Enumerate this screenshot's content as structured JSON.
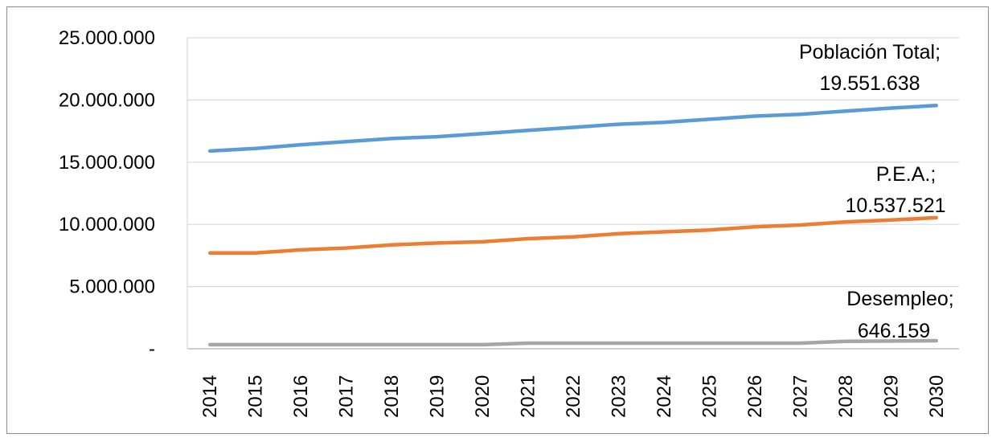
{
  "chart_data": {
    "type": "line",
    "title": "",
    "xlabel": "",
    "ylabel": "",
    "ylim": [
      0,
      25000000
    ],
    "grid": true,
    "legend": "none",
    "y_ticks": [
      {
        "value": 0,
        "label": "-"
      },
      {
        "value": 5000000,
        "label": "5.000.000"
      },
      {
        "value": 10000000,
        "label": "10.000.000"
      },
      {
        "value": 15000000,
        "label": "15.000.000"
      },
      {
        "value": 20000000,
        "label": "20.000.000"
      },
      {
        "value": 25000000,
        "label": "25.000.000"
      }
    ],
    "categories": [
      "2014",
      "2015",
      "2016",
      "2017",
      "2018",
      "2019",
      "2020",
      "2021",
      "2022",
      "2023",
      "2024",
      "2025",
      "2026",
      "2027",
      "2028",
      "2029",
      "2030"
    ],
    "series": [
      {
        "color": "#5b9bd5",
        "values": [
          15900000,
          16100000,
          16400000,
          16650000,
          16900000,
          17050000,
          17300000,
          17550000,
          17800000,
          18050000,
          18200000,
          18450000,
          18700000,
          18850000,
          19100000,
          19350000,
          19551638
        ],
        "label_line1": "Población Total;",
        "label_line2": "19.551.638"
      },
      {
        "color": "#ed7d31",
        "values": [
          7700000,
          7700000,
          7950000,
          8100000,
          8350000,
          8500000,
          8600000,
          8850000,
          9000000,
          9250000,
          9400000,
          9550000,
          9800000,
          9950000,
          10200000,
          10350000,
          10537521
        ],
        "label_line1": "P.E.A.;",
        "label_line2": "10.537.521"
      },
      {
        "color": "#a5a5a5",
        "values": [
          330000,
          330000,
          330000,
          330000,
          330000,
          330000,
          330000,
          450000,
          450000,
          450000,
          450000,
          450000,
          450000,
          450000,
          600000,
          620000,
          646159
        ],
        "label_line1": "Desempleo;",
        "label_line2": "646.159"
      }
    ]
  }
}
